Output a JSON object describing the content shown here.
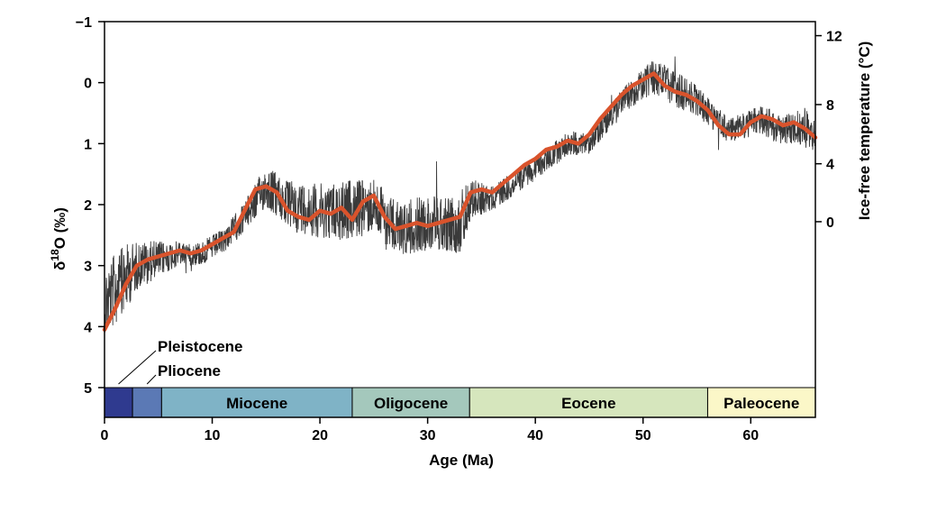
{
  "chart_data": {
    "type": "line",
    "xlabel": "Age (Ma)",
    "ylabel_left": "δ18O (‰)",
    "ylabel_left_parts": {
      "delta": "δ",
      "sup": "18",
      "tail": "O (",
      "unit": "‰",
      "close": ")"
    },
    "ylabel_right": "Ice-free temperature (°C)",
    "xlim": [
      0,
      66
    ],
    "ylim_left": [
      -1,
      5
    ],
    "left_axis_inverted": true,
    "x_ticks": [
      0,
      10,
      20,
      30,
      40,
      50,
      60
    ],
    "y_left_ticks": [
      -1,
      0,
      1,
      2,
      3,
      4,
      5
    ],
    "y_left_tick_labels": [
      "−1",
      "0",
      "1",
      "2",
      "3",
      "4",
      "5"
    ],
    "y_right_ticks": [
      {
        "temp": 12,
        "label": "12",
        "d18O": -0.77
      },
      {
        "temp": 8,
        "label": "8",
        "d18O": 0.36
      },
      {
        "temp": 4,
        "label": "4",
        "d18O": 1.33
      },
      {
        "temp": 0,
        "label": "0",
        "d18O": 2.28
      }
    ],
    "grid": false,
    "series": [
      {
        "role": "raw",
        "color": "#3a3a3a",
        "x_range": [
          0,
          66
        ],
        "band_envelope": [
          {
            "x": 0,
            "center": 3.6,
            "spread": 0.6
          },
          {
            "x": 1,
            "center": 3.4,
            "spread": 0.6
          },
          {
            "x": 2,
            "center": 3.2,
            "spread": 0.55
          },
          {
            "x": 3,
            "center": 3.0,
            "spread": 0.4
          },
          {
            "x": 5,
            "center": 2.9,
            "spread": 0.3
          },
          {
            "x": 7,
            "center": 2.8,
            "spread": 0.2
          },
          {
            "x": 9,
            "center": 2.8,
            "spread": 0.2
          },
          {
            "x": 11,
            "center": 2.6,
            "spread": 0.2
          },
          {
            "x": 13,
            "center": 2.2,
            "spread": 0.25
          },
          {
            "x": 15,
            "center": 1.7,
            "spread": 0.35
          },
          {
            "x": 17,
            "center": 2.0,
            "spread": 0.4
          },
          {
            "x": 20,
            "center": 2.1,
            "spread": 0.45
          },
          {
            "x": 23,
            "center": 2.1,
            "spread": 0.5
          },
          {
            "x": 25,
            "center": 2.0,
            "spread": 0.45
          },
          {
            "x": 27,
            "center": 2.4,
            "spread": 0.45
          },
          {
            "x": 30,
            "center": 2.3,
            "spread": 0.45
          },
          {
            "x": 33,
            "center": 2.3,
            "spread": 0.5
          },
          {
            "x": 34,
            "center": 1.9,
            "spread": 0.35
          },
          {
            "x": 36,
            "center": 1.9,
            "spread": 0.2
          },
          {
            "x": 40,
            "center": 1.4,
            "spread": 0.2
          },
          {
            "x": 43,
            "center": 1.0,
            "spread": 0.2
          },
          {
            "x": 45,
            "center": 1.0,
            "spread": 0.2
          },
          {
            "x": 48,
            "center": 0.3,
            "spread": 0.2
          },
          {
            "x": 51,
            "center": -0.1,
            "spread": 0.3
          },
          {
            "x": 53,
            "center": 0.1,
            "spread": 0.3
          },
          {
            "x": 55,
            "center": 0.3,
            "spread": 0.25
          },
          {
            "x": 58,
            "center": 0.8,
            "spread": 0.2
          },
          {
            "x": 61,
            "center": 0.6,
            "spread": 0.25
          },
          {
            "x": 63,
            "center": 0.8,
            "spread": 0.25
          },
          {
            "x": 65,
            "center": 0.7,
            "spread": 0.3
          },
          {
            "x": 66,
            "center": 0.9,
            "spread": 0.25
          }
        ]
      },
      {
        "role": "smoothed",
        "color": "#d9532c",
        "x": [
          0,
          1,
          2,
          3,
          4,
          5,
          6,
          7,
          8,
          9,
          10,
          11,
          12,
          13,
          14,
          15,
          16,
          17,
          18,
          19,
          20,
          21,
          22,
          23,
          24,
          25,
          26,
          27,
          28,
          29,
          30,
          31,
          32,
          33,
          34,
          35,
          36,
          37,
          38,
          39,
          40,
          41,
          42,
          43,
          44,
          45,
          46,
          47,
          48,
          49,
          50,
          51,
          52,
          53,
          54,
          55,
          56,
          57,
          58,
          59,
          60,
          61,
          62,
          63,
          64,
          65,
          66
        ],
        "y": [
          4.05,
          3.7,
          3.3,
          3.0,
          2.9,
          2.85,
          2.8,
          2.75,
          2.8,
          2.75,
          2.65,
          2.55,
          2.45,
          2.1,
          1.75,
          1.7,
          1.8,
          2.1,
          2.2,
          2.25,
          2.1,
          2.15,
          2.05,
          2.25,
          1.95,
          1.85,
          2.2,
          2.4,
          2.35,
          2.3,
          2.35,
          2.3,
          2.25,
          2.2,
          1.8,
          1.75,
          1.8,
          1.65,
          1.5,
          1.35,
          1.25,
          1.1,
          1.05,
          0.95,
          1.0,
          0.85,
          0.6,
          0.4,
          0.2,
          0.05,
          -0.05,
          -0.15,
          0.05,
          0.15,
          0.2,
          0.3,
          0.45,
          0.7,
          0.85,
          0.85,
          0.65,
          0.55,
          0.6,
          0.7,
          0.65,
          0.75,
          0.9
        ]
      }
    ],
    "epochs": [
      {
        "name": "Pleistocene",
        "start": 0,
        "end": 2.6,
        "color": "#2f3a8f",
        "label_inside": false
      },
      {
        "name": "Pliocene",
        "start": 2.6,
        "end": 5.3,
        "color": "#5b79b5",
        "label_inside": false
      },
      {
        "name": "Miocene",
        "start": 5.3,
        "end": 23,
        "color": "#7fb3c6",
        "label_inside": true
      },
      {
        "name": "Oligocene",
        "start": 23,
        "end": 33.9,
        "color": "#a4c8bc",
        "label_inside": true
      },
      {
        "name": "Eocene",
        "start": 33.9,
        "end": 56,
        "color": "#d6e6bd",
        "label_inside": true
      },
      {
        "name": "Paleocene",
        "start": 56,
        "end": 66,
        "color": "#fbf7c8",
        "label_inside": true
      }
    ],
    "callouts": [
      {
        "text": "Pleistocene",
        "epoch": "Pleistocene"
      },
      {
        "text": "Pliocene",
        "epoch": "Pliocene"
      }
    ]
  }
}
